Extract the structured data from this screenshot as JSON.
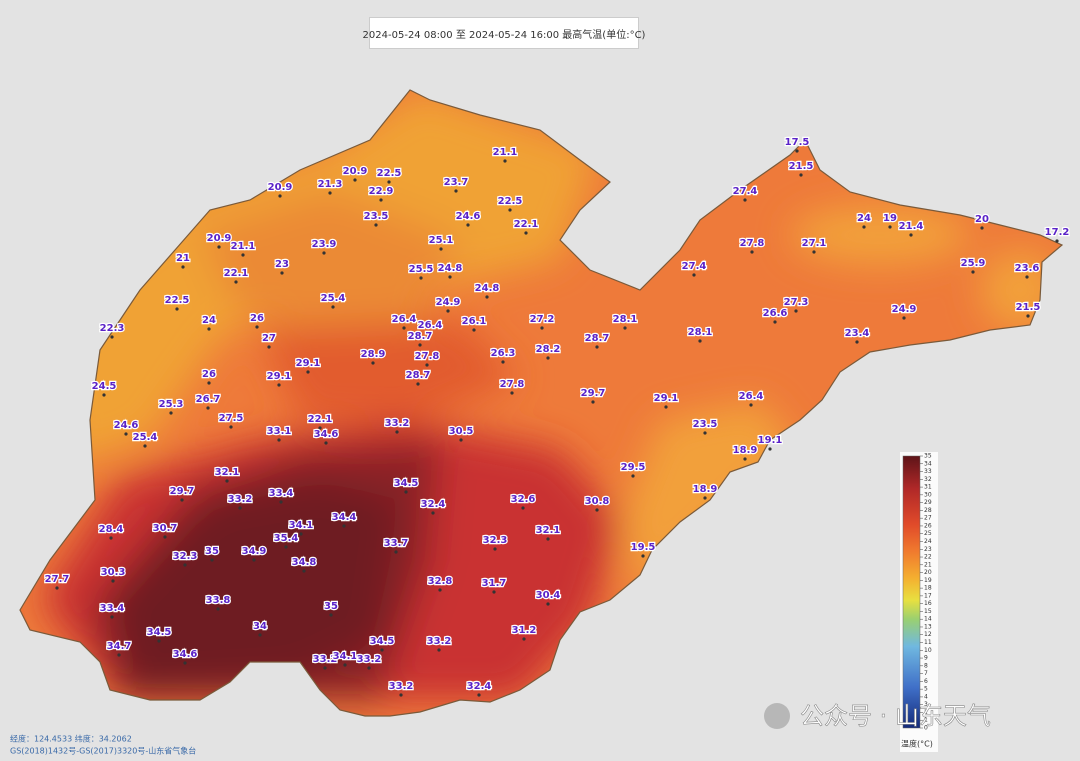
{
  "header": {
    "title": "2024-05-24 08:00 至 2024-05-24 16:00 最高气温(单位:°C)"
  },
  "stations": [
    17.5,
    21.5,
    27.4,
    21.1,
    20.9,
    22.5,
    20.9,
    21.3,
    22.9,
    23.7,
    22.5,
    24.6,
    23.5,
    22.1,
    24,
    19,
    21.4,
    20,
    17.2,
    20.9,
    21.1,
    23.9,
    25.1,
    27.8,
    27.1,
    21,
    23,
    22.1,
    25.5,
    24.8,
    24.8,
    27.4,
    25.9,
    23.6,
    22.5,
    25.4,
    24.9,
    27.3,
    26.6,
    24.9,
    21.5,
    22.3,
    24,
    26,
    26.4,
    26.4,
    26.1,
    27.2,
    28.1,
    28.1,
    23.4,
    28.7,
    28.7,
    27,
    26.3,
    28.2,
    29.1,
    28.9,
    27.8,
    26,
    29.1,
    28.7,
    27.8,
    24.5,
    29.7,
    29.1,
    26.4,
    25.3,
    26.7,
    27.5,
    22.1,
    24.6,
    33.2,
    30.5,
    23.5,
    25.4,
    33.1,
    34.6,
    19.1,
    18.9,
    29.5,
    32.1,
    34.5,
    29.7,
    18.9,
    33.2,
    33.4,
    32.4,
    32.6,
    30.8,
    30.7,
    34.4,
    34.1,
    32.1,
    28.4,
    35.4,
    33.7,
    32.3,
    19.5,
    35,
    34.9,
    32.3,
    34.8,
    27.7,
    30.3,
    32.8,
    31.7,
    30.4,
    33.8,
    35,
    33.4,
    34,
    34.5,
    31.2,
    34.5,
    33.2,
    34.7,
    34.6,
    33.2,
    34.1,
    33.2,
    33.2,
    32.4
  ],
  "legend": {
    "ticks": [
      35,
      34,
      33,
      32,
      31,
      30,
      29,
      28,
      27,
      26,
      25,
      24,
      23,
      22,
      21,
      20,
      19,
      18,
      17,
      16,
      15,
      14,
      13,
      12,
      11,
      10,
      9,
      8,
      7,
      6,
      5,
      4,
      3,
      2,
      1,
      0
    ],
    "label": "温度(°C)"
  },
  "footer": {
    "coords": "经度：124.4533  纬度：34.2062",
    "copyright": "GS(2018)1432号-GS(2017)3320号-山东省气象台"
  },
  "watermark": "公众号 · 山东天气"
}
